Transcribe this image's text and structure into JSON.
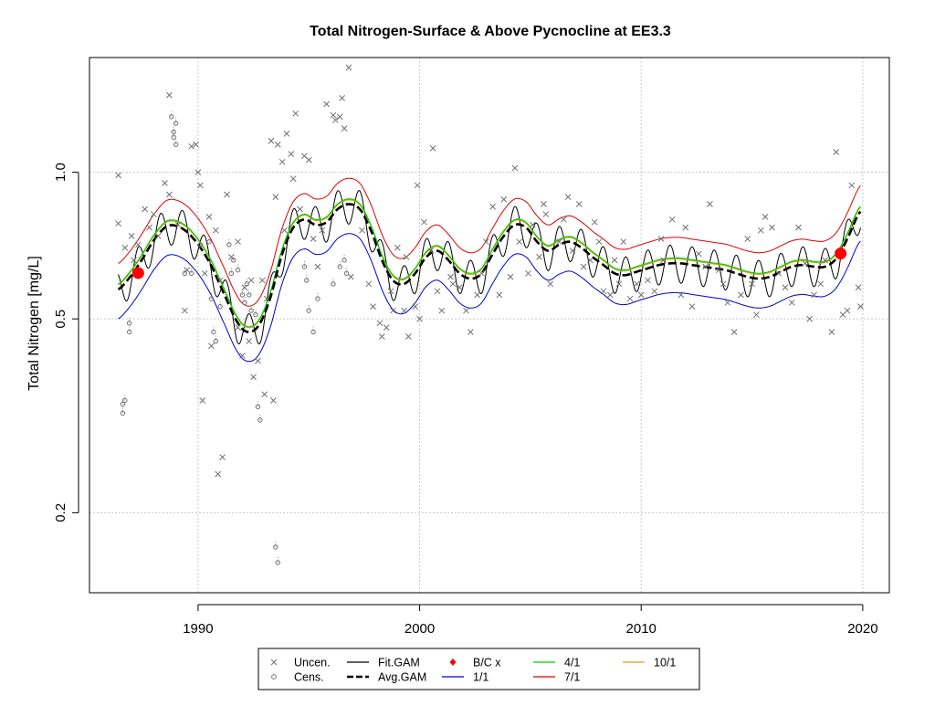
{
  "chart_data": {
    "type": "line",
    "title": "Total Nitrogen-Surface & Above Pycnocline at EE3.3",
    "xlabel": "",
    "ylabel": "Total Nitrogen [mg/L]",
    "y_scale": "log",
    "xlim": [
      1985.1,
      2021.2
    ],
    "ylim": [
      0.137,
      1.72
    ],
    "x_ticks": [
      1990,
      2000,
      2010,
      2020
    ],
    "y_ticks": [
      0.2,
      0.5,
      1.0
    ],
    "y_tick_labels": [
      "0.2",
      "0.5",
      "1.0"
    ],
    "grid": true,
    "legend_position": "bottom",
    "colors": {
      "uncensored": "#707070",
      "censored": "#707070",
      "fit_gam": "#000000",
      "avg_gam": "#000000",
      "bc": "#ff0000",
      "p1_1": "#0000cc",
      "p4_1": "#00cc00",
      "p7_1": "#dd0000",
      "p10_1": "#e6a000"
    },
    "legend": [
      {
        "key": "uncen",
        "label": "Uncen.",
        "symbol": "x-mark",
        "color": "#707070"
      },
      {
        "key": "cens",
        "label": "Cens.",
        "symbol": "open-circle",
        "color": "#707070"
      },
      {
        "key": "fitgam",
        "label": "Fit.GAM",
        "symbol": "line",
        "color": "#000000"
      },
      {
        "key": "avggam",
        "label": "Avg.GAM",
        "symbol": "dashed-line",
        "color": "#000000"
      },
      {
        "key": "bc",
        "label": "B/C x",
        "symbol": "diamond",
        "color": "#ff0000"
      },
      {
        "key": "p1",
        "label": "1/1",
        "symbol": "line",
        "color": "#0000cc"
      },
      {
        "key": "p4",
        "label": "4/1",
        "symbol": "line",
        "color": "#00cc00"
      },
      {
        "key": "p7",
        "label": "7/1",
        "symbol": "line",
        "color": "#dd0000"
      },
      {
        "key": "p10",
        "label": "10/1",
        "symbol": "line",
        "color": "#e6a000"
      }
    ],
    "baseline_avg_gam": {
      "x": [
        1986.4,
        1987.0,
        1987.5,
        1988.0,
        1988.6,
        1989.2,
        1989.8,
        1990.5,
        1991.2,
        1991.8,
        1992.3,
        1992.8,
        1993.3,
        1993.8,
        1994.3,
        1994.8,
        1995.3,
        1995.8,
        1996.3,
        1996.8,
        1997.3,
        1997.8,
        1998.3,
        1998.8,
        1999.3,
        1999.8,
        2000.3,
        2000.8,
        2001.3,
        2001.8,
        2002.3,
        2002.8,
        2003.3,
        2003.8,
        2004.3,
        2004.8,
        2005.3,
        2005.8,
        2006.3,
        2006.8,
        2007.3,
        2007.8,
        2008.3,
        2008.8,
        2009.3,
        2009.8,
        2010.3,
        2010.8,
        2011.3,
        2011.8,
        2012.3,
        2012.8,
        2013.3,
        2013.8,
        2014.3,
        2014.8,
        2015.3,
        2015.8,
        2016.3,
        2016.8,
        2017.3,
        2017.8,
        2018.3,
        2018.8,
        2019.3,
        2019.9
      ],
      "y": [
        0.575,
        0.615,
        0.665,
        0.725,
        0.775,
        0.77,
        0.73,
        0.655,
        0.56,
        0.49,
        0.47,
        0.49,
        0.56,
        0.68,
        0.77,
        0.8,
        0.78,
        0.79,
        0.84,
        0.86,
        0.84,
        0.76,
        0.66,
        0.6,
        0.59,
        0.62,
        0.67,
        0.69,
        0.66,
        0.62,
        0.605,
        0.62,
        0.68,
        0.74,
        0.78,
        0.77,
        0.72,
        0.69,
        0.71,
        0.72,
        0.7,
        0.67,
        0.645,
        0.62,
        0.615,
        0.625,
        0.635,
        0.645,
        0.65,
        0.65,
        0.645,
        0.64,
        0.635,
        0.63,
        0.62,
        0.61,
        0.605,
        0.61,
        0.625,
        0.64,
        0.645,
        0.64,
        0.64,
        0.665,
        0.73,
        0.83
      ]
    },
    "bc_points": [
      {
        "x": 1987.3,
        "y": 0.621
      },
      {
        "x": 2019.0,
        "y": 0.681
      }
    ],
    "uncensored_points": [
      [
        1986.4,
        0.986
      ],
      [
        1986.4,
        0.785
      ],
      [
        1986.7,
        0.7
      ],
      [
        1987.0,
        0.74
      ],
      [
        1987.1,
        0.66
      ],
      [
        1987.3,
        0.71
      ],
      [
        1987.6,
        0.84
      ],
      [
        1987.8,
        0.77
      ],
      [
        1988.0,
        0.82
      ],
      [
        1988.2,
        0.74
      ],
      [
        1988.5,
        0.95
      ],
      [
        1988.7,
        1.44
      ],
      [
        1988.7,
        0.9
      ],
      [
        1989.1,
        0.78
      ],
      [
        1989.4,
        0.52
      ],
      [
        1989.5,
        0.63
      ],
      [
        1989.7,
        1.13
      ],
      [
        1989.9,
        1.14
      ],
      [
        1990.0,
        1.0
      ],
      [
        1990.1,
        0.94
      ],
      [
        1990.2,
        0.34
      ],
      [
        1990.3,
        0.62
      ],
      [
        1990.5,
        0.81
      ],
      [
        1990.6,
        0.44
      ],
      [
        1990.8,
        0.76
      ],
      [
        1990.9,
        0.24
      ],
      [
        1991.0,
        0.6
      ],
      [
        1991.1,
        0.26
      ],
      [
        1991.3,
        0.9
      ],
      [
        1991.5,
        0.67
      ],
      [
        1991.8,
        0.72
      ],
      [
        1991.8,
        0.48
      ],
      [
        1992.0,
        0.42
      ],
      [
        1992.1,
        0.58
      ],
      [
        1992.3,
        0.45
      ],
      [
        1992.4,
        0.6
      ],
      [
        1992.5,
        0.38
      ],
      [
        1992.7,
        0.41
      ],
      [
        1992.9,
        0.6
      ],
      [
        1993.0,
        0.35
      ],
      [
        1993.1,
        0.55
      ],
      [
        1993.3,
        1.16
      ],
      [
        1993.4,
        0.34
      ],
      [
        1993.5,
        0.89
      ],
      [
        1993.6,
        1.14
      ],
      [
        1993.8,
        1.05
      ],
      [
        1993.9,
        0.76
      ],
      [
        1994.0,
        1.2
      ],
      [
        1994.2,
        1.09
      ],
      [
        1994.3,
        0.97
      ],
      [
        1994.4,
        1.32
      ],
      [
        1994.6,
        0.84
      ],
      [
        1994.8,
        1.08
      ],
      [
        1995.0,
        1.06
      ],
      [
        1995.2,
        0.73
      ],
      [
        1995.4,
        0.64
      ],
      [
        1995.6,
        0.76
      ],
      [
        1995.8,
        1.38
      ],
      [
        1996.1,
        1.31
      ],
      [
        1996.2,
        1.28
      ],
      [
        1996.4,
        1.3
      ],
      [
        1996.5,
        1.42
      ],
      [
        1996.6,
        1.23
      ],
      [
        1996.8,
        1.64
      ],
      [
        1996.9,
        0.61
      ],
      [
        1997.4,
        0.76
      ],
      [
        1997.7,
        0.59
      ],
      [
        1997.9,
        0.53
      ],
      [
        1998.2,
        0.49
      ],
      [
        1998.3,
        0.46
      ],
      [
        1998.5,
        0.48
      ],
      [
        1998.7,
        0.57
      ],
      [
        1998.8,
        0.52
      ],
      [
        1999.0,
        0.7
      ],
      [
        1999.3,
        0.52
      ],
      [
        1999.4,
        0.67
      ],
      [
        1999.5,
        0.46
      ],
      [
        1999.8,
        0.53
      ],
      [
        1999.9,
        0.94
      ],
      [
        2000.0,
        0.5
      ],
      [
        2000.2,
        0.79
      ],
      [
        2000.5,
        0.69
      ],
      [
        2000.6,
        1.12
      ],
      [
        2000.8,
        0.57
      ],
      [
        2001.0,
        0.52
      ],
      [
        2001.4,
        0.61
      ],
      [
        2001.5,
        0.59
      ],
      [
        2001.8,
        0.58
      ],
      [
        2002.1,
        0.52
      ],
      [
        2002.3,
        0.47
      ],
      [
        2002.6,
        0.56
      ],
      [
        2002.8,
        0.62
      ],
      [
        2003.0,
        0.72
      ],
      [
        2003.3,
        0.85
      ],
      [
        2003.6,
        0.56
      ],
      [
        2003.8,
        0.88
      ],
      [
        2004.1,
        0.61
      ],
      [
        2004.3,
        1.02
      ],
      [
        2004.5,
        0.72
      ],
      [
        2004.9,
        0.62
      ],
      [
        2005.1,
        0.78
      ],
      [
        2005.4,
        0.67
      ],
      [
        2005.6,
        0.86
      ],
      [
        2005.7,
        0.82
      ],
      [
        2005.9,
        0.59
      ],
      [
        2006.3,
        0.72
      ],
      [
        2006.5,
        0.8
      ],
      [
        2006.7,
        0.89
      ],
      [
        2006.9,
        0.69
      ],
      [
        2007.2,
        0.86
      ],
      [
        2007.4,
        0.64
      ],
      [
        2007.7,
        0.66
      ],
      [
        2007.9,
        0.79
      ],
      [
        2008.1,
        0.72
      ],
      [
        2008.3,
        0.57
      ],
      [
        2008.6,
        0.56
      ],
      [
        2008.8,
        0.66
      ],
      [
        2009.0,
        0.59
      ],
      [
        2009.2,
        0.72
      ],
      [
        2009.5,
        0.55
      ],
      [
        2009.8,
        0.59
      ],
      [
        2010.0,
        0.56
      ],
      [
        2010.3,
        0.6
      ],
      [
        2010.6,
        0.57
      ],
      [
        2010.9,
        0.73
      ],
      [
        2011.0,
        0.66
      ],
      [
        2011.4,
        0.8
      ],
      [
        2011.8,
        0.56
      ],
      [
        2012.0,
        0.77
      ],
      [
        2012.3,
        0.53
      ],
      [
        2012.6,
        0.68
      ],
      [
        2012.9,
        0.64
      ],
      [
        2013.1,
        0.86
      ],
      [
        2013.5,
        0.63
      ],
      [
        2013.7,
        0.59
      ],
      [
        2013.9,
        0.54
      ],
      [
        2014.2,
        0.47
      ],
      [
        2014.5,
        0.56
      ],
      [
        2014.8,
        0.73
      ],
      [
        2015.0,
        0.59
      ],
      [
        2015.2,
        0.51
      ],
      [
        2015.4,
        0.76
      ],
      [
        2015.6,
        0.81
      ],
      [
        2015.9,
        0.77
      ],
      [
        2016.2,
        0.62
      ],
      [
        2016.5,
        0.58
      ],
      [
        2016.8,
        0.54
      ],
      [
        2017.1,
        0.77
      ],
      [
        2017.4,
        0.65
      ],
      [
        2017.6,
        0.5
      ],
      [
        2017.8,
        0.56
      ],
      [
        2018.1,
        0.59
      ],
      [
        2018.3,
        0.66
      ],
      [
        2018.6,
        0.47
      ],
      [
        2018.8,
        1.1
      ],
      [
        2019.1,
        0.51
      ],
      [
        2019.3,
        0.52
      ],
      [
        2019.5,
        0.94
      ],
      [
        2019.8,
        0.58
      ],
      [
        2019.9,
        0.53
      ]
    ],
    "censored_points": [
      [
        1986.6,
        0.32
      ],
      [
        1986.6,
        0.334
      ],
      [
        1986.7,
        0.34
      ],
      [
        1986.9,
        0.47
      ],
      [
        1986.9,
        0.49
      ],
      [
        1988.8,
        1.3
      ],
      [
        1988.9,
        1.18
      ],
      [
        1988.9,
        1.21
      ],
      [
        1989.0,
        1.26
      ],
      [
        1989.0,
        1.14
      ],
      [
        1989.4,
        0.62
      ],
      [
        1989.7,
        0.62
      ],
      [
        1990.1,
        0.71
      ],
      [
        1990.5,
        0.72
      ],
      [
        1990.6,
        0.55
      ],
      [
        1990.7,
        0.47
      ],
      [
        1990.8,
        0.45
      ],
      [
        1991.0,
        0.53
      ],
      [
        1991.4,
        0.71
      ],
      [
        1991.5,
        0.62
      ],
      [
        1991.6,
        0.66
      ],
      [
        1991.8,
        0.63
      ],
      [
        1992.0,
        0.56
      ],
      [
        1992.1,
        0.54
      ],
      [
        1992.2,
        0.59
      ],
      [
        1992.3,
        0.56
      ],
      [
        1992.4,
        0.52
      ],
      [
        1992.6,
        0.51
      ],
      [
        1992.7,
        0.33
      ],
      [
        1992.8,
        0.31
      ],
      [
        1993.5,
        0.17
      ],
      [
        1993.6,
        0.158
      ],
      [
        1994.8,
        0.64
      ],
      [
        1994.9,
        0.6
      ],
      [
        1995.0,
        0.52
      ],
      [
        1995.2,
        0.47
      ],
      [
        1995.4,
        0.55
      ],
      [
        1996.1,
        0.59
      ],
      [
        1996.4,
        0.64
      ],
      [
        1996.6,
        0.66
      ],
      [
        1996.7,
        0.62
      ]
    ]
  },
  "legend_rows": [
    [
      "uncen",
      "fitgam",
      "bc",
      "p4",
      "p10"
    ],
    [
      "cens",
      "avggam",
      "p1",
      "p7"
    ]
  ]
}
